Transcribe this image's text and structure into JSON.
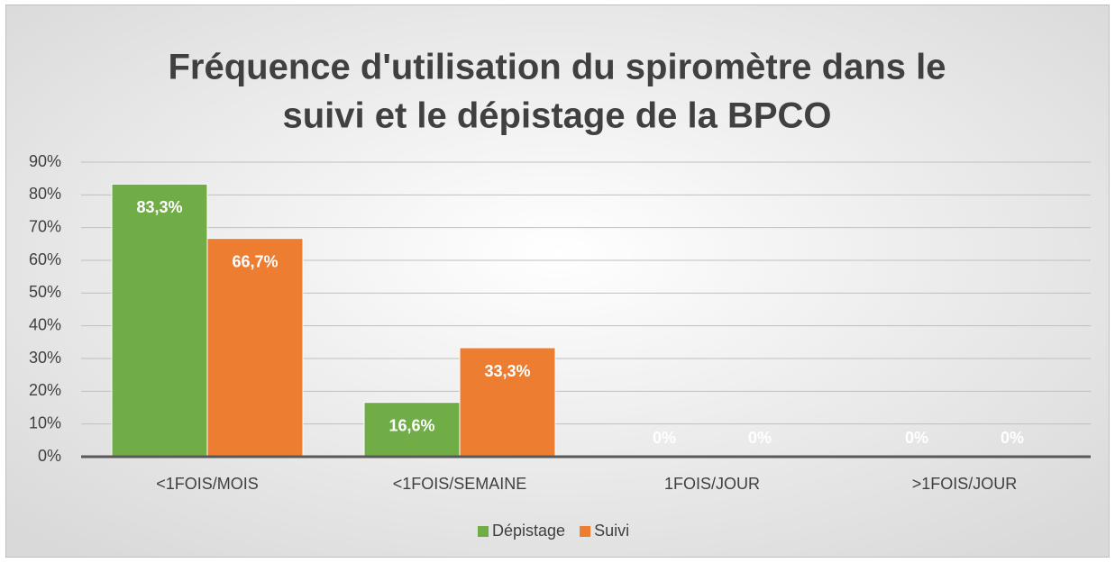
{
  "chart_data": {
    "type": "bar",
    "title": [
      "Fréquence d'utilisation du spiromètre dans le",
      "suivi et le dépistage de la BPCO"
    ],
    "categories": [
      "<1FOIS/MOIS",
      "<1FOIS/SEMAINE",
      "1FOIS/JOUR",
      ">1FOIS/JOUR"
    ],
    "series": [
      {
        "name": "Dépistage",
        "color": "#70ad47",
        "values": [
          83.3,
          16.6,
          0,
          0
        ],
        "value_labels": [
          "83,3%",
          "16,6%",
          "0%",
          "0%"
        ]
      },
      {
        "name": "Suivi",
        "color": "#ed7d31",
        "values": [
          66.7,
          33.3,
          0,
          0
        ],
        "value_labels": [
          "66,7%",
          "33,3%",
          "0%",
          "0%"
        ]
      }
    ],
    "ylim": [
      0,
      90
    ],
    "yticks": [
      {
        "value": 0,
        "label": "0%"
      },
      {
        "value": 10,
        "label": "10%"
      },
      {
        "value": 20,
        "label": "20%"
      },
      {
        "value": 30,
        "label": "30%"
      },
      {
        "value": 40,
        "label": "40%"
      },
      {
        "value": 50,
        "label": "50%"
      },
      {
        "value": 60,
        "label": "60%"
      },
      {
        "value": 70,
        "label": "70%"
      },
      {
        "value": 80,
        "label": "80%"
      },
      {
        "value": 90,
        "label": "90%"
      }
    ],
    "grid": true,
    "legend": "bottom"
  }
}
